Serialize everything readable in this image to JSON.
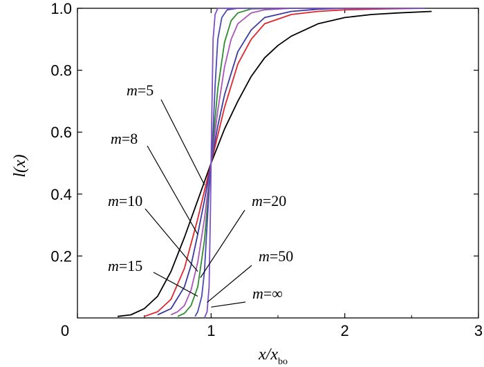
{
  "chart_data": {
    "type": "line",
    "xlabel": "x/x",
    "xlabel_sub": "bo",
    "ylabel": "l(x)",
    "xlim": [
      0,
      3
    ],
    "ylim": [
      0,
      1.0
    ],
    "x_ticks": [
      "0",
      "1",
      "2",
      "3"
    ],
    "y_ticks": [
      "0.2",
      "0.4",
      "0.6",
      "0.8",
      "1.0"
    ],
    "grid": false,
    "legend": "none",
    "series": [
      {
        "name": "m=5",
        "m": 5,
        "color": "#000000",
        "x": [
          0.3,
          0.4,
          0.5,
          0.6,
          0.7,
          0.8,
          0.9,
          1.0,
          1.1,
          1.2,
          1.3,
          1.4,
          1.5,
          1.6,
          1.8,
          2.0,
          2.2,
          2.4,
          2.65
        ],
        "y": [
          0.005,
          0.01,
          0.03,
          0.07,
          0.15,
          0.26,
          0.38,
          0.5,
          0.61,
          0.7,
          0.78,
          0.84,
          0.88,
          0.91,
          0.95,
          0.97,
          0.98,
          0.985,
          0.99
        ]
      },
      {
        "name": "m=8",
        "m": 8,
        "color": "#e0242c",
        "x": [
          0.5,
          0.6,
          0.7,
          0.8,
          0.9,
          1.0,
          1.1,
          1.2,
          1.3,
          1.4,
          1.6,
          1.8,
          2.0,
          2.3,
          2.6
        ],
        "y": [
          0.005,
          0.02,
          0.06,
          0.16,
          0.32,
          0.5,
          0.68,
          0.82,
          0.9,
          0.95,
          0.98,
          0.99,
          0.995,
          0.998,
          1.0
        ]
      },
      {
        "name": "m=10",
        "m": 10,
        "color": "#3a3a9e",
        "x": [
          0.6,
          0.7,
          0.8,
          0.85,
          0.9,
          0.95,
          1.0,
          1.05,
          1.1,
          1.2,
          1.3,
          1.4,
          1.6,
          1.8,
          2.0,
          2.6
        ],
        "y": [
          0.01,
          0.03,
          0.1,
          0.17,
          0.27,
          0.38,
          0.5,
          0.62,
          0.72,
          0.86,
          0.93,
          0.97,
          0.99,
          0.997,
          1.0,
          1.0
        ]
      },
      {
        "name": "m=15",
        "m": 15,
        "color": "#a855b8",
        "x": [
          0.7,
          0.75,
          0.8,
          0.85,
          0.9,
          0.95,
          1.0,
          1.05,
          1.1,
          1.15,
          1.2,
          1.3,
          1.4,
          1.6,
          2.0,
          2.6
        ],
        "y": [
          0.01,
          0.02,
          0.04,
          0.09,
          0.18,
          0.32,
          0.5,
          0.67,
          0.81,
          0.9,
          0.95,
          0.985,
          0.995,
          1.0,
          1.0,
          1.0
        ]
      },
      {
        "name": "m=20",
        "m": 20,
        "color": "#2e8b2e",
        "x": [
          0.75,
          0.8,
          0.85,
          0.9,
          0.95,
          1.0,
          1.05,
          1.1,
          1.15,
          1.2,
          1.3,
          1.5,
          2.0,
          2.6
        ],
        "y": [
          0.005,
          0.015,
          0.04,
          0.1,
          0.25,
          0.5,
          0.74,
          0.89,
          0.96,
          0.985,
          0.998,
          1.0,
          1.0,
          1.0
        ]
      },
      {
        "name": "m=50",
        "m": 50,
        "color": "#4a4ab0",
        "x": [
          0.88,
          0.9,
          0.93,
          0.95,
          0.97,
          0.99,
          1.0,
          1.01,
          1.03,
          1.05,
          1.08,
          1.12,
          1.2,
          2.0,
          2.6
        ],
        "y": [
          0.005,
          0.02,
          0.07,
          0.15,
          0.3,
          0.45,
          0.5,
          0.56,
          0.75,
          0.9,
          0.97,
          0.995,
          1.0,
          1.0,
          1.0
        ]
      },
      {
        "name": "m=∞",
        "m": "∞",
        "color": "#7d4fc7",
        "x": [
          0.95,
          0.97,
          0.985,
          0.995,
          1.0,
          1.005,
          1.015,
          1.03,
          1.05,
          2.6
        ],
        "y": [
          0.0,
          0.02,
          0.1,
          0.35,
          0.5,
          0.65,
          0.9,
          0.98,
          1.0,
          1.0
        ]
      }
    ],
    "annotations": [
      {
        "m": "m",
        "eq": "=5",
        "target_x": 0.95,
        "target_y": 0.43
      },
      {
        "m": "m",
        "eq": "=8",
        "target_x": 0.9,
        "target_y": 0.27
      },
      {
        "m": "m",
        "eq": "=10",
        "target_x": 0.9,
        "target_y": 0.15
      },
      {
        "m": "m",
        "eq": "=15",
        "target_x": 0.9,
        "target_y": 0.07
      },
      {
        "m": "m",
        "eq": "=20",
        "target_x": 0.92,
        "target_y": 0.13
      },
      {
        "m": "m",
        "eq": "=50",
        "target_x": 0.97,
        "target_y": 0.05
      },
      {
        "m": "m",
        "eq": "=∞",
        "target_x": 1.0,
        "target_y": 0.035
      }
    ]
  }
}
